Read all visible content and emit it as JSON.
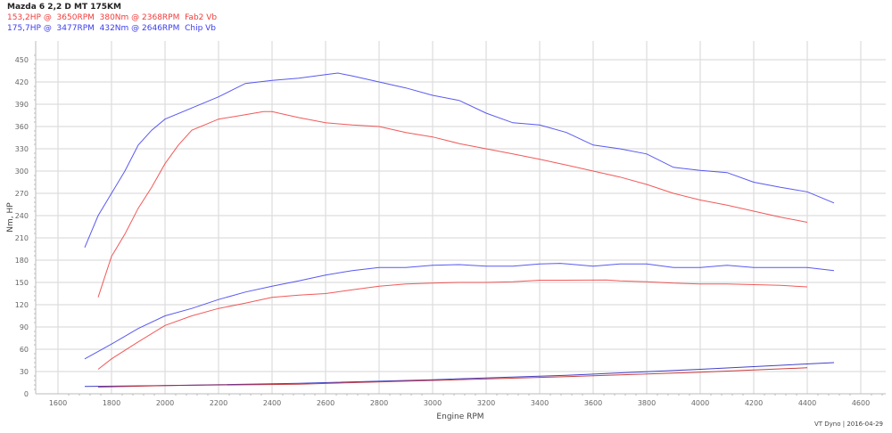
{
  "header": {
    "title": "Mazda 6 2,2 D MT 175KM",
    "line1": "153,2HP @  3650RPM  380Nm @ 2368RPM  Fab2 Vb",
    "line2": "175,7HP @  3477RPM  432Nm @ 2646RPM  Chip Vb"
  },
  "footer": "VT Dyno | 2016-04-29",
  "colors": {
    "stock": "#f03c3c",
    "chip": "#3c3cf0",
    "loss_stock": "#c02020",
    "loss_chip": "#2020c0",
    "grid": "#dddddd"
  },
  "chart_data": {
    "type": "line",
    "title": "Mazda 6 2,2 D MT 175KM",
    "xlabel": "Engine RPM",
    "ylabel": "Nm, HP",
    "xlim": [
      1520,
      4680
    ],
    "ylim": [
      0,
      470
    ],
    "x_ticks": [
      1600,
      1800,
      2000,
      2200,
      2400,
      2600,
      2800,
      3000,
      3200,
      3400,
      3600,
      3800,
      4000,
      4200,
      4400,
      4600
    ],
    "y_ticks": [
      0,
      30,
      60,
      90,
      120,
      150,
      180,
      210,
      240,
      270,
      300,
      330,
      360,
      390,
      420,
      450
    ],
    "grid": true,
    "legend": [
      {
        "name": "Fab2 Vb",
        "peak_hp": "153,2HP @ 3650RPM",
        "peak_nm": "380Nm @ 2368RPM",
        "color": "#f03c3c"
      },
      {
        "name": "Chip Vb",
        "peak_hp": "175,7HP @ 3477RPM",
        "peak_nm": "432Nm @ 2646RPM",
        "color": "#3c3cf0"
      }
    ],
    "series": [
      {
        "name": "Chip Vb Torque (Nm)",
        "color": "#3c3cf0",
        "x": [
          1700,
          1750,
          1800,
          1850,
          1900,
          1950,
          2000,
          2100,
          2200,
          2300,
          2400,
          2500,
          2600,
          2646,
          2700,
          2800,
          2900,
          3000,
          3100,
          3200,
          3300,
          3400,
          3500,
          3600,
          3700,
          3800,
          3900,
          4000,
          4100,
          4200,
          4300,
          4400,
          4500
        ],
        "y": [
          197,
          240,
          270,
          300,
          335,
          355,
          370,
          385,
          400,
          418,
          422,
          425,
          430,
          432,
          428,
          420,
          412,
          402,
          395,
          378,
          365,
          362,
          352,
          335,
          330,
          323,
          305,
          301,
          298,
          285,
          278,
          272,
          257
        ]
      },
      {
        "name": "Fab2 Vb Torque (Nm)",
        "color": "#f03c3c",
        "x": [
          1750,
          1800,
          1850,
          1900,
          1950,
          2000,
          2050,
          2100,
          2200,
          2300,
          2368,
          2400,
          2500,
          2600,
          2700,
          2800,
          2900,
          3000,
          3100,
          3200,
          3300,
          3400,
          3500,
          3600,
          3700,
          3800,
          3900,
          4000,
          4100,
          4200,
          4300,
          4400
        ],
        "y": [
          130,
          185,
          215,
          250,
          278,
          310,
          335,
          355,
          370,
          376,
          380,
          380,
          372,
          365,
          362,
          360,
          352,
          346,
          337,
          330,
          323,
          316,
          308,
          300,
          292,
          282,
          270,
          261,
          254,
          246,
          238,
          231
        ]
      },
      {
        "name": "Chip Vb Power (HP)",
        "color": "#3c3cf0",
        "x": [
          1700,
          1800,
          1900,
          2000,
          2100,
          2200,
          2300,
          2400,
          2500,
          2600,
          2700,
          2800,
          2900,
          3000,
          3100,
          3200,
          3300,
          3400,
          3477,
          3600,
          3700,
          3800,
          3900,
          4000,
          4100,
          4200,
          4300,
          4400,
          4500
        ],
        "y": [
          47,
          67,
          88,
          105,
          115,
          127,
          137,
          145,
          152,
          160,
          166,
          170,
          170,
          173,
          174,
          172,
          172,
          175,
          175.7,
          172,
          175,
          175,
          170,
          170,
          173,
          170,
          170,
          170,
          166
        ]
      },
      {
        "name": "Fab2 Vb Power (HP)",
        "color": "#f03c3c",
        "x": [
          1750,
          1800,
          1900,
          2000,
          2100,
          2200,
          2300,
          2400,
          2500,
          2600,
          2700,
          2800,
          2900,
          3000,
          3100,
          3200,
          3300,
          3400,
          3500,
          3650,
          3700,
          3800,
          3900,
          4000,
          4100,
          4200,
          4300,
          4400
        ],
        "y": [
          33,
          47,
          70,
          92,
          105,
          115,
          122,
          130,
          133,
          135,
          140,
          145,
          148,
          149,
          150,
          150,
          151,
          153,
          153,
          153.2,
          152,
          151,
          149,
          148,
          148,
          147,
          146,
          144
        ]
      },
      {
        "name": "Chip Vb Loss",
        "color": "#2020c0",
        "x": [
          1700,
          2000,
          2500,
          3000,
          3500,
          4000,
          4500
        ],
        "y": [
          10,
          11,
          14,
          19,
          25,
          33,
          42
        ]
      },
      {
        "name": "Fab2 Vb Loss",
        "color": "#c02020",
        "x": [
          1750,
          2000,
          2500,
          3000,
          3500,
          4000,
          4400
        ],
        "y": [
          9,
          11,
          13,
          18,
          23,
          29,
          35
        ]
      }
    ]
  }
}
